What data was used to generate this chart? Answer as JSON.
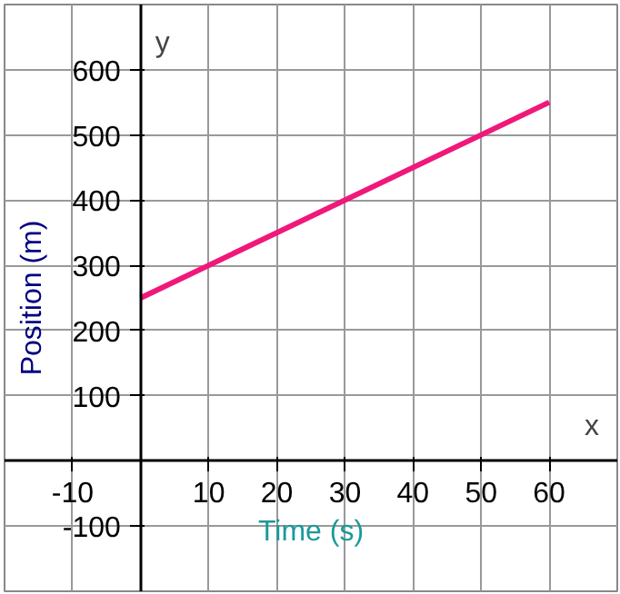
{
  "chart_data": {
    "type": "line",
    "xlabel": "Time (s)",
    "ylabel": "Position (m)",
    "annotations": [
      "x",
      "y"
    ],
    "x": [
      0,
      60
    ],
    "series": [
      {
        "color": "#f0187a",
        "values": [
          250,
          550
        ]
      }
    ],
    "xlim": [
      -20,
      70
    ],
    "ylim": [
      -200,
      700
    ],
    "xticks": [
      -10,
      10,
      20,
      30,
      40,
      50,
      60
    ],
    "yticks": [
      -100,
      100,
      200,
      300,
      400,
      500,
      600
    ],
    "grid": true,
    "marker": "none",
    "line_style": "solid"
  }
}
